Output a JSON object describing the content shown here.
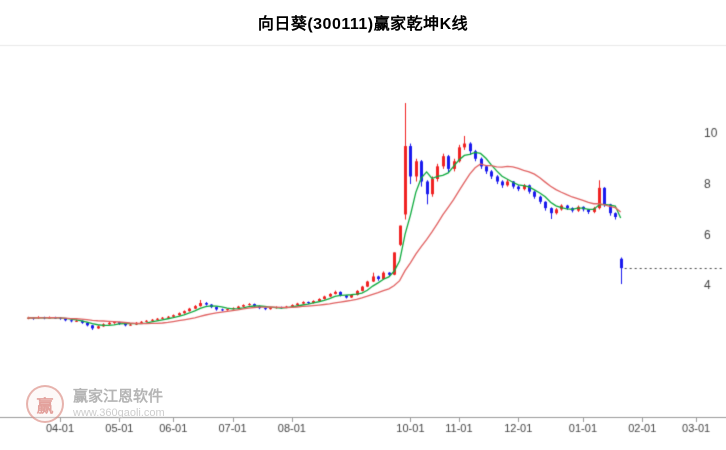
{
  "header": {
    "title": "向日葵(300111)赢家乾坤K线"
  },
  "watermark": {
    "logo_char": "赢",
    "brand": "赢家江恩软件",
    "url": "www.360gaoli.com"
  },
  "chart_data": {
    "type": "candlestick",
    "title": "向日葵(300111)赢家乾坤K线",
    "stock_name": "向日葵",
    "stock_code": "300111",
    "legend_position": "none",
    "grid": false,
    "y_axis": {
      "side": "right",
      "ticks": [
        4,
        6,
        8,
        10
      ],
      "ylim": [
        -1.2,
        12.9
      ]
    },
    "x_axis": {
      "total_slots": 128,
      "ticks": [
        {
          "label": "04-01",
          "idx": 6
        },
        {
          "label": "05-01",
          "idx": 17
        },
        {
          "label": "06-01",
          "idx": 27
        },
        {
          "label": "07-01",
          "idx": 38
        },
        {
          "label": "08-01",
          "idx": 49
        },
        {
          "label": "10-01",
          "idx": 71
        },
        {
          "label": "11-01",
          "idx": 80
        },
        {
          "label": "12-01",
          "idx": 91
        },
        {
          "label": "01-01",
          "idx": 103
        },
        {
          "label": "02-01",
          "idx": 114
        },
        {
          "label": "03-01",
          "idx": 124
        }
      ]
    },
    "candles": [
      [
        2.7,
        2.76,
        2.66,
        2.72
      ],
      [
        2.72,
        2.74,
        2.64,
        2.7
      ],
      [
        2.7,
        2.78,
        2.68,
        2.74
      ],
      [
        2.74,
        2.76,
        2.66,
        2.71
      ],
      [
        2.71,
        2.77,
        2.69,
        2.73
      ],
      [
        2.73,
        2.76,
        2.68,
        2.72
      ],
      [
        2.72,
        2.75,
        2.64,
        2.68
      ],
      [
        2.68,
        2.7,
        2.58,
        2.62
      ],
      [
        2.62,
        2.66,
        2.54,
        2.58
      ],
      [
        2.58,
        2.64,
        2.55,
        2.6
      ],
      [
        2.6,
        2.61,
        2.48,
        2.52
      ],
      [
        2.52,
        2.54,
        2.38,
        2.42
      ],
      [
        2.42,
        2.44,
        2.24,
        2.3
      ],
      [
        2.3,
        2.42,
        2.28,
        2.38
      ],
      [
        2.38,
        2.5,
        2.36,
        2.46
      ],
      [
        2.46,
        2.55,
        2.44,
        2.52
      ],
      [
        2.52,
        2.58,
        2.48,
        2.55
      ],
      [
        2.55,
        2.56,
        2.44,
        2.48
      ],
      [
        2.48,
        2.5,
        2.38,
        2.42
      ],
      [
        2.42,
        2.48,
        2.4,
        2.45
      ],
      [
        2.45,
        2.55,
        2.43,
        2.52
      ],
      [
        2.52,
        2.59,
        2.5,
        2.56
      ],
      [
        2.56,
        2.63,
        2.54,
        2.6
      ],
      [
        2.6,
        2.67,
        2.58,
        2.64
      ],
      [
        2.64,
        2.71,
        2.62,
        2.68
      ],
      [
        2.68,
        2.75,
        2.66,
        2.72
      ],
      [
        2.72,
        2.79,
        2.7,
        2.76
      ],
      [
        2.76,
        2.85,
        2.74,
        2.82
      ],
      [
        2.82,
        2.93,
        2.8,
        2.9
      ],
      [
        2.9,
        3.01,
        2.88,
        2.98
      ],
      [
        2.98,
        3.11,
        2.96,
        3.08
      ],
      [
        3.08,
        3.22,
        3.06,
        3.18
      ],
      [
        3.18,
        3.42,
        3.16,
        3.3
      ],
      [
        3.3,
        3.34,
        3.2,
        3.24
      ],
      [
        3.24,
        3.26,
        3.1,
        3.14
      ],
      [
        3.14,
        3.16,
        3.0,
        3.05
      ],
      [
        3.05,
        3.08,
        2.98,
        3.02
      ],
      [
        3.02,
        3.09,
        3.0,
        3.06
      ],
      [
        3.06,
        3.13,
        3.04,
        3.1
      ],
      [
        3.1,
        3.19,
        3.08,
        3.16
      ],
      [
        3.16,
        3.25,
        3.14,
        3.22
      ],
      [
        3.22,
        3.3,
        3.2,
        3.26
      ],
      [
        3.26,
        3.28,
        3.14,
        3.18
      ],
      [
        3.18,
        3.2,
        3.06,
        3.1
      ],
      [
        3.1,
        3.12,
        3.02,
        3.06
      ],
      [
        3.06,
        3.13,
        3.04,
        3.1
      ],
      [
        3.1,
        3.17,
        3.08,
        3.14
      ],
      [
        3.14,
        3.16,
        3.08,
        3.12
      ],
      [
        3.12,
        3.19,
        3.1,
        3.16
      ],
      [
        3.16,
        3.25,
        3.14,
        3.22
      ],
      [
        3.22,
        3.31,
        3.2,
        3.28
      ],
      [
        3.28,
        3.37,
        3.26,
        3.34
      ],
      [
        3.34,
        3.36,
        3.26,
        3.3
      ],
      [
        3.3,
        3.41,
        3.28,
        3.38
      ],
      [
        3.38,
        3.49,
        3.36,
        3.46
      ],
      [
        3.46,
        3.59,
        3.44,
        3.56
      ],
      [
        3.56,
        3.69,
        3.54,
        3.66
      ],
      [
        3.66,
        3.79,
        3.64,
        3.74
      ],
      [
        3.74,
        3.76,
        3.56,
        3.6
      ],
      [
        3.6,
        3.62,
        3.48,
        3.52
      ],
      [
        3.52,
        3.65,
        3.5,
        3.62
      ],
      [
        3.62,
        3.81,
        3.6,
        3.78
      ],
      [
        3.78,
        3.98,
        3.76,
        3.95
      ],
      [
        3.95,
        4.18,
        3.93,
        4.15
      ],
      [
        4.15,
        4.5,
        4.13,
        4.35
      ],
      [
        4.35,
        4.38,
        4.18,
        4.25
      ],
      [
        4.25,
        4.55,
        4.23,
        4.5
      ],
      [
        4.5,
        4.52,
        4.36,
        4.42
      ],
      [
        4.42,
        5.3,
        4.4,
        5.3
      ],
      [
        5.6,
        6.36,
        5.55,
        6.36
      ],
      [
        6.8,
        11.2,
        6.6,
        9.5
      ],
      [
        9.5,
        9.6,
        8.0,
        8.3
      ],
      [
        8.3,
        9.0,
        8.1,
        8.9
      ],
      [
        8.9,
        8.95,
        7.9,
        8.1
      ],
      [
        8.1,
        8.15,
        7.2,
        7.6
      ],
      [
        7.6,
        8.3,
        7.5,
        8.2
      ],
      [
        8.2,
        8.8,
        8.1,
        8.7
      ],
      [
        8.7,
        9.2,
        8.6,
        9.1
      ],
      [
        9.1,
        9.15,
        8.45,
        8.6
      ],
      [
        8.6,
        9.0,
        8.5,
        8.9
      ],
      [
        8.9,
        9.55,
        8.85,
        9.45
      ],
      [
        9.45,
        9.9,
        9.35,
        9.6
      ],
      [
        9.6,
        9.65,
        9.15,
        9.3
      ],
      [
        9.3,
        9.35,
        8.9,
        9.0
      ],
      [
        9.0,
        9.05,
        8.6,
        8.7
      ],
      [
        8.7,
        8.75,
        8.4,
        8.5
      ],
      [
        8.5,
        8.55,
        8.2,
        8.3
      ],
      [
        8.3,
        8.35,
        8.0,
        8.1
      ],
      [
        8.1,
        8.15,
        7.85,
        7.95
      ],
      [
        7.95,
        8.2,
        7.9,
        8.1
      ],
      [
        8.1,
        8.12,
        7.82,
        7.9
      ],
      [
        7.9,
        7.95,
        7.72,
        7.8
      ],
      [
        7.8,
        8.0,
        7.75,
        7.95
      ],
      [
        7.95,
        7.98,
        7.62,
        7.7
      ],
      [
        7.7,
        7.74,
        7.42,
        7.5
      ],
      [
        7.5,
        7.54,
        7.22,
        7.3
      ],
      [
        7.3,
        7.32,
        6.95,
        7.05
      ],
      [
        7.05,
        7.08,
        6.62,
        6.85
      ],
      [
        6.85,
        7.05,
        6.8,
        7.0
      ],
      [
        7.0,
        7.2,
        6.95,
        7.15
      ],
      [
        7.15,
        7.18,
        6.98,
        7.05
      ],
      [
        7.05,
        7.08,
        6.88,
        6.95
      ],
      [
        6.95,
        7.15,
        6.9,
        7.1
      ],
      [
        7.1,
        7.12,
        6.92,
        7.0
      ],
      [
        7.0,
        7.02,
        6.82,
        6.9
      ],
      [
        6.9,
        7.1,
        6.85,
        7.05
      ],
      [
        7.05,
        8.15,
        7.0,
        7.85
      ],
      [
        7.85,
        7.88,
        7.1,
        7.2
      ],
      [
        7.2,
        7.22,
        6.75,
        6.85
      ],
      [
        6.85,
        6.88,
        6.6,
        6.7
      ],
      [
        5.05,
        5.1,
        4.05,
        4.68
      ]
    ],
    "ma_short": {
      "window": 5,
      "color": "#0caa3c"
    },
    "ma_long": {
      "window": 15,
      "color": "#e06060"
    },
    "last_price_line": {
      "price": 4.68,
      "style": "dotted",
      "color": "#444444"
    },
    "colors": {
      "up": "#f02222",
      "down": "#1a1aee",
      "axis": "#9a9a9a",
      "label": "#444444",
      "separator": "#e8e8e8"
    }
  }
}
